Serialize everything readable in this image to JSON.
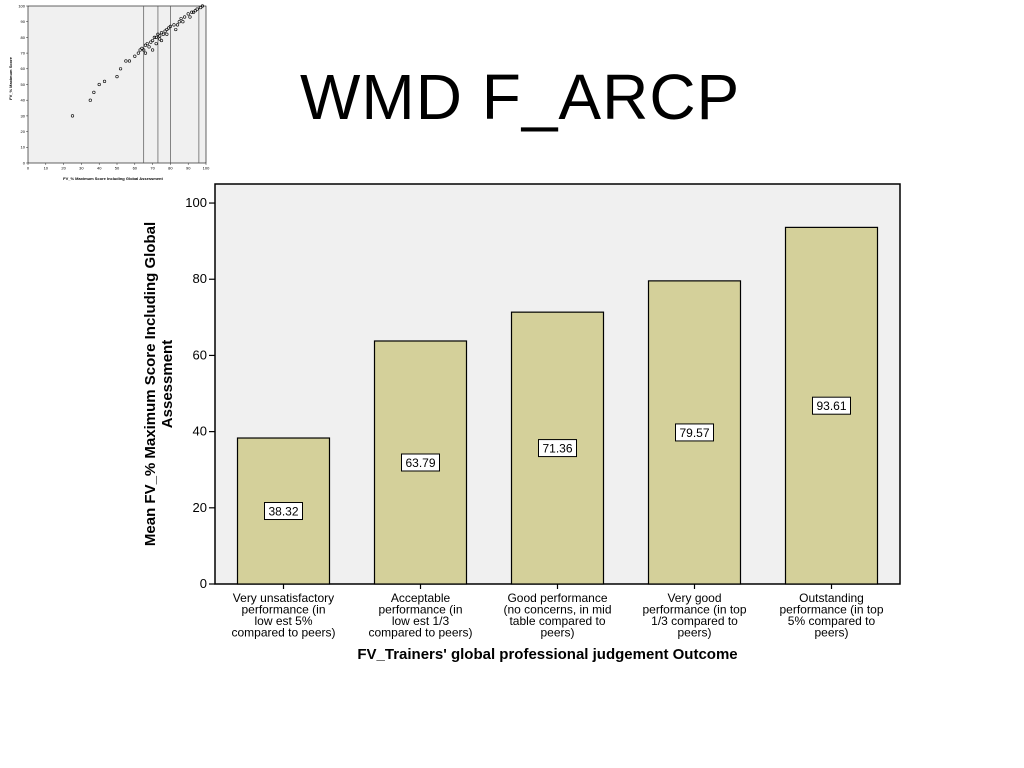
{
  "slide": {
    "title": "WMD F_ARCP"
  },
  "chart_data": [
    {
      "type": "bar",
      "title": "",
      "categories": [
        [
          "Very unsatisfactory",
          "performance (in",
          "low est 5%",
          "compared to peers)"
        ],
        [
          "Acceptable",
          "performance (in",
          "low est 1/3",
          "compared to peers)"
        ],
        [
          "Good performance",
          "(no concerns, in mid",
          "table compared to",
          "peers)"
        ],
        [
          "Very good",
          "performance (in top",
          "1/3 compared to",
          "peers)"
        ],
        [
          "Outstanding",
          "performance (in top",
          "5% compared to",
          "peers)"
        ]
      ],
      "values": [
        38.32,
        63.79,
        71.36,
        79.57,
        93.61
      ],
      "data_labels": [
        "38.32",
        "63.79",
        "71.36",
        "79.57",
        "93.61"
      ],
      "xlabel": "FV_Trainers' global professional judgement Outcome",
      "ylabel": [
        "Mean FV_% Maximum Score Including Global",
        "Assessment"
      ],
      "ylim": [
        0,
        105
      ],
      "yticks": [
        0,
        20,
        40,
        60,
        80,
        100
      ],
      "ytick_labels": [
        "0",
        "20",
        "40",
        "60",
        "80",
        "100"
      ],
      "grid": false,
      "colors": {
        "bar": "#d4d09a",
        "plot_bg": "#f0f0f0",
        "border": "#000000"
      }
    },
    {
      "type": "scatter",
      "xlabel": "FV_% Maximum Score Including Global Assessment",
      "ylabel": "FV_% Maximum Score",
      "xlim": [
        0,
        100
      ],
      "ylim": [
        0,
        100
      ],
      "xticks": [
        0,
        10,
        20,
        30,
        40,
        50,
        60,
        70,
        80,
        90,
        100
      ],
      "xtick_labels": [
        "0",
        "10",
        "20",
        "30",
        "40",
        "50",
        "60",
        "70",
        "80",
        "90",
        "100"
      ],
      "yticks": [
        0,
        10,
        20,
        30,
        40,
        50,
        60,
        70,
        80,
        90,
        100
      ],
      "ytick_labels": [
        "0",
        "10",
        "20",
        "30",
        "40",
        "50",
        "60",
        "70",
        "80",
        "90",
        "100"
      ],
      "reference_lines_x": [
        65,
        73,
        80,
        96
      ],
      "points": [
        [
          25,
          30
        ],
        [
          35,
          40
        ],
        [
          37,
          45
        ],
        [
          40,
          50
        ],
        [
          43,
          52
        ],
        [
          50,
          55
        ],
        [
          52,
          60
        ],
        [
          55,
          65
        ],
        [
          57,
          65
        ],
        [
          60,
          68
        ],
        [
          62,
          70
        ],
        [
          63,
          72
        ],
        [
          64,
          73
        ],
        [
          65,
          72
        ],
        [
          66,
          75
        ],
        [
          67,
          76
        ],
        [
          68,
          74
        ],
        [
          69,
          77
        ],
        [
          70,
          78
        ],
        [
          71,
          80
        ],
        [
          72,
          80
        ],
        [
          73,
          82
        ],
        [
          74,
          81
        ],
        [
          75,
          83
        ],
        [
          76,
          82
        ],
        [
          77,
          84
        ],
        [
          78,
          85
        ],
        [
          79,
          86
        ],
        [
          80,
          87
        ],
        [
          82,
          88
        ],
        [
          84,
          88
        ],
        [
          85,
          90
        ],
        [
          86,
          92
        ],
        [
          88,
          93
        ],
        [
          90,
          95
        ],
        [
          92,
          96
        ],
        [
          94,
          97
        ],
        [
          95,
          98
        ],
        [
          97,
          99
        ],
        [
          98,
          100
        ],
        [
          70,
          72
        ],
        [
          66,
          70
        ],
        [
          72,
          76
        ],
        [
          75,
          78
        ],
        [
          83,
          85
        ],
        [
          87,
          90
        ],
        [
          91,
          93
        ],
        [
          93,
          96
        ],
        [
          78,
          82
        ],
        [
          74,
          79
        ]
      ],
      "colors": {
        "plot_bg": "#f0f0f0",
        "point": "#000000"
      }
    }
  ]
}
